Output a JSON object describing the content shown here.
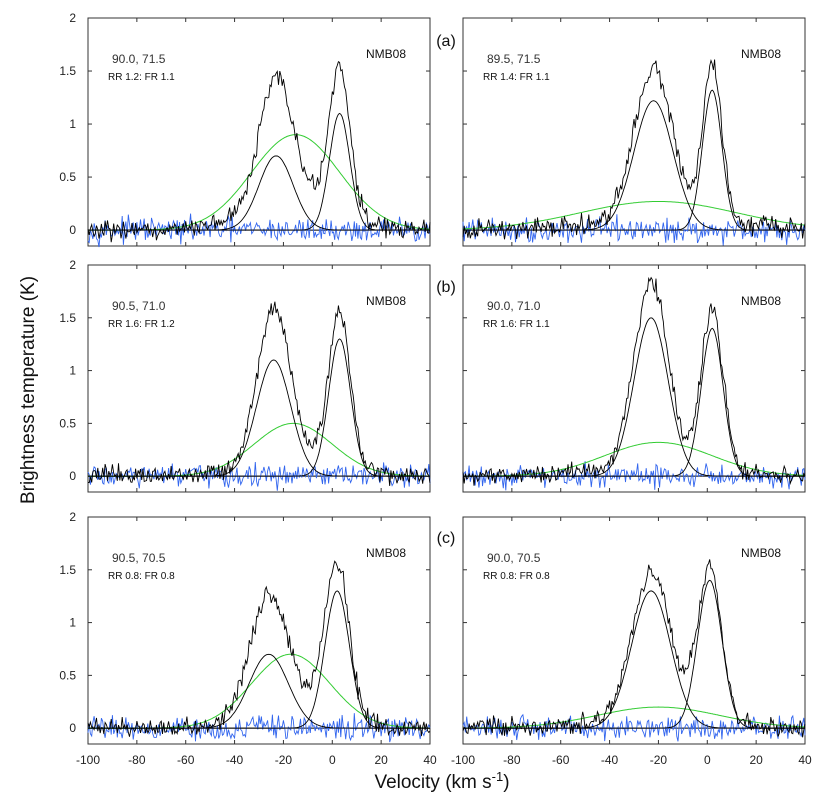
{
  "figure": {
    "xlabel_main": "Velocity (km s",
    "xlabel_sup": "-1",
    "xlabel_close": ")",
    "ylabel": "Brightness temperature (K)",
    "row_labels": [
      "(a)",
      "(b)",
      "(c)"
    ],
    "colors": {
      "observed": "#000000",
      "component": "#000000",
      "wide": "#33cc33",
      "residual": "#3366ee",
      "frame": "#333333"
    }
  },
  "chart_data": [
    {
      "type": "line",
      "id": "a-left",
      "row": "(a)",
      "coord": "90.0, 71.5",
      "ratio": "RR 1.2: FR 1.1",
      "ref": "NMB08",
      "xlim": [
        -100,
        40
      ],
      "ylim": [
        -0.15,
        2
      ],
      "xticks": [
        -100,
        -80,
        -60,
        -40,
        -20,
        0,
        20,
        40
      ],
      "yticks": [
        0,
        0.5,
        1,
        1.5,
        2
      ],
      "xtick_labels": [
        "-100",
        "-80",
        "-60",
        "-40",
        "-20",
        "0",
        "20",
        "40"
      ],
      "ytick_labels": [
        "0",
        "0.5",
        "1",
        "1.5",
        "2"
      ],
      "components": [
        {
          "center": -23,
          "amp": 0.7,
          "sigma": 7
        },
        {
          "center": 3,
          "amp": 1.1,
          "sigma": 4.2
        }
      ],
      "wide": {
        "center": -15,
        "amp": 0.9,
        "sigma": 18
      },
      "peaks_observed": [
        1.6,
        1.62
      ]
    },
    {
      "type": "line",
      "id": "a-right",
      "row": "(a)",
      "coord": "89.5, 71.5",
      "ratio": "RR 1.4: FR 1.1",
      "ref": "NMB08",
      "xlim": [
        -100,
        40
      ],
      "ylim": [
        -0.15,
        2
      ],
      "xticks": [
        -100,
        -80,
        -60,
        -40,
        -20,
        0,
        20,
        40
      ],
      "yticks": [
        0,
        0.5,
        1,
        1.5,
        2
      ],
      "xtick_labels": [
        "-100",
        "-80",
        "-60",
        "-40",
        "-20",
        "0",
        "20",
        "40"
      ],
      "ytick_labels": [
        "0",
        "0.5",
        "1",
        "1.5",
        "2"
      ],
      "components": [
        {
          "center": -22,
          "amp": 1.22,
          "sigma": 8
        },
        {
          "center": 2,
          "amp": 1.32,
          "sigma": 4
        }
      ],
      "wide": {
        "center": -20,
        "amp": 0.27,
        "sigma": 32
      },
      "peaks_observed": [
        1.6,
        1.62
      ]
    },
    {
      "type": "line",
      "id": "b-left",
      "row": "(b)",
      "coord": "90.5, 71.0",
      "ratio": "RR 1.6: FR 1.2",
      "ref": "NMB08",
      "xlim": [
        -100,
        40
      ],
      "ylim": [
        -0.15,
        2
      ],
      "xticks": [
        -100,
        -80,
        -60,
        -40,
        -20,
        0,
        20,
        40
      ],
      "yticks": [
        0,
        0.5,
        1,
        1.5,
        2
      ],
      "xtick_labels": [
        "-100",
        "-80",
        "-60",
        "-40",
        "-20",
        "0",
        "20",
        "40"
      ],
      "ytick_labels": [
        "0",
        "0.5",
        "1",
        "1.5",
        "2"
      ],
      "components": [
        {
          "center": -24,
          "amp": 1.1,
          "sigma": 7
        },
        {
          "center": 3,
          "amp": 1.3,
          "sigma": 4.5
        }
      ],
      "wide": {
        "center": -16,
        "amp": 0.5,
        "sigma": 16
      },
      "peaks_observed": [
        1.7,
        1.62
      ]
    },
    {
      "type": "line",
      "id": "b-right",
      "row": "(b)",
      "coord": "90.0, 71.0",
      "ratio": "RR 1.6: FR 1.1",
      "ref": "NMB08",
      "xlim": [
        -100,
        40
      ],
      "ylim": [
        -0.15,
        2
      ],
      "xticks": [
        -100,
        -80,
        -60,
        -40,
        -20,
        0,
        20,
        40
      ],
      "yticks": [
        0,
        0.5,
        1,
        1.5,
        2
      ],
      "xtick_labels": [
        "-100",
        "-80",
        "-60",
        "-40",
        "-20",
        "0",
        "20",
        "40"
      ],
      "ytick_labels": [
        "0",
        "0.5",
        "1",
        "1.5",
        "2"
      ],
      "components": [
        {
          "center": -23,
          "amp": 1.5,
          "sigma": 7
        },
        {
          "center": 2,
          "amp": 1.4,
          "sigma": 4.5
        }
      ],
      "wide": {
        "center": -20,
        "amp": 0.32,
        "sigma": 22
      },
      "peaks_observed": [
        1.9,
        1.6
      ]
    },
    {
      "type": "line",
      "id": "c-left",
      "row": "(c)",
      "coord": "90.5, 70.5",
      "ratio": "RR 0.8: FR 0.8",
      "ref": "NMB08",
      "xlim": [
        -100,
        40
      ],
      "ylim": [
        -0.15,
        2
      ],
      "xticks": [
        -100,
        -80,
        -60,
        -40,
        -20,
        0,
        20,
        40
      ],
      "yticks": [
        0,
        0.5,
        1,
        1.5,
        2
      ],
      "xtick_labels": [
        "-100",
        "-80",
        "-60",
        "-40",
        "-20",
        "0",
        "20",
        "40"
      ],
      "ytick_labels": [
        "0",
        "0.5",
        "1",
        "1.5",
        "2"
      ],
      "components": [
        {
          "center": -26,
          "amp": 0.7,
          "sigma": 8
        },
        {
          "center": 2,
          "amp": 1.3,
          "sigma": 5
        }
      ],
      "wide": {
        "center": -17,
        "amp": 0.7,
        "sigma": 16
      },
      "peaks_observed": [
        1.35,
        1.6
      ]
    },
    {
      "type": "line",
      "id": "c-right",
      "row": "(c)",
      "coord": "90.0, 70.5",
      "ratio": "RR 0.8: FR 0.8",
      "ref": "NMB08",
      "xlim": [
        -100,
        40
      ],
      "ylim": [
        -0.15,
        2
      ],
      "xticks": [
        -100,
        -80,
        -60,
        -40,
        -20,
        0,
        20,
        40
      ],
      "yticks": [
        0,
        0.5,
        1,
        1.5,
        2
      ],
      "xtick_labels": [
        "-100",
        "-80",
        "-60",
        "-40",
        "-20",
        "0",
        "20",
        "40"
      ],
      "ytick_labels": [
        "0",
        "0.5",
        "1",
        "1.5",
        "2"
      ],
      "components": [
        {
          "center": -23,
          "amp": 1.3,
          "sigma": 8
        },
        {
          "center": 1,
          "amp": 1.4,
          "sigma": 5
        }
      ],
      "wide": {
        "center": -20,
        "amp": 0.2,
        "sigma": 25
      },
      "peaks_observed": [
        1.52,
        1.5
      ]
    }
  ]
}
